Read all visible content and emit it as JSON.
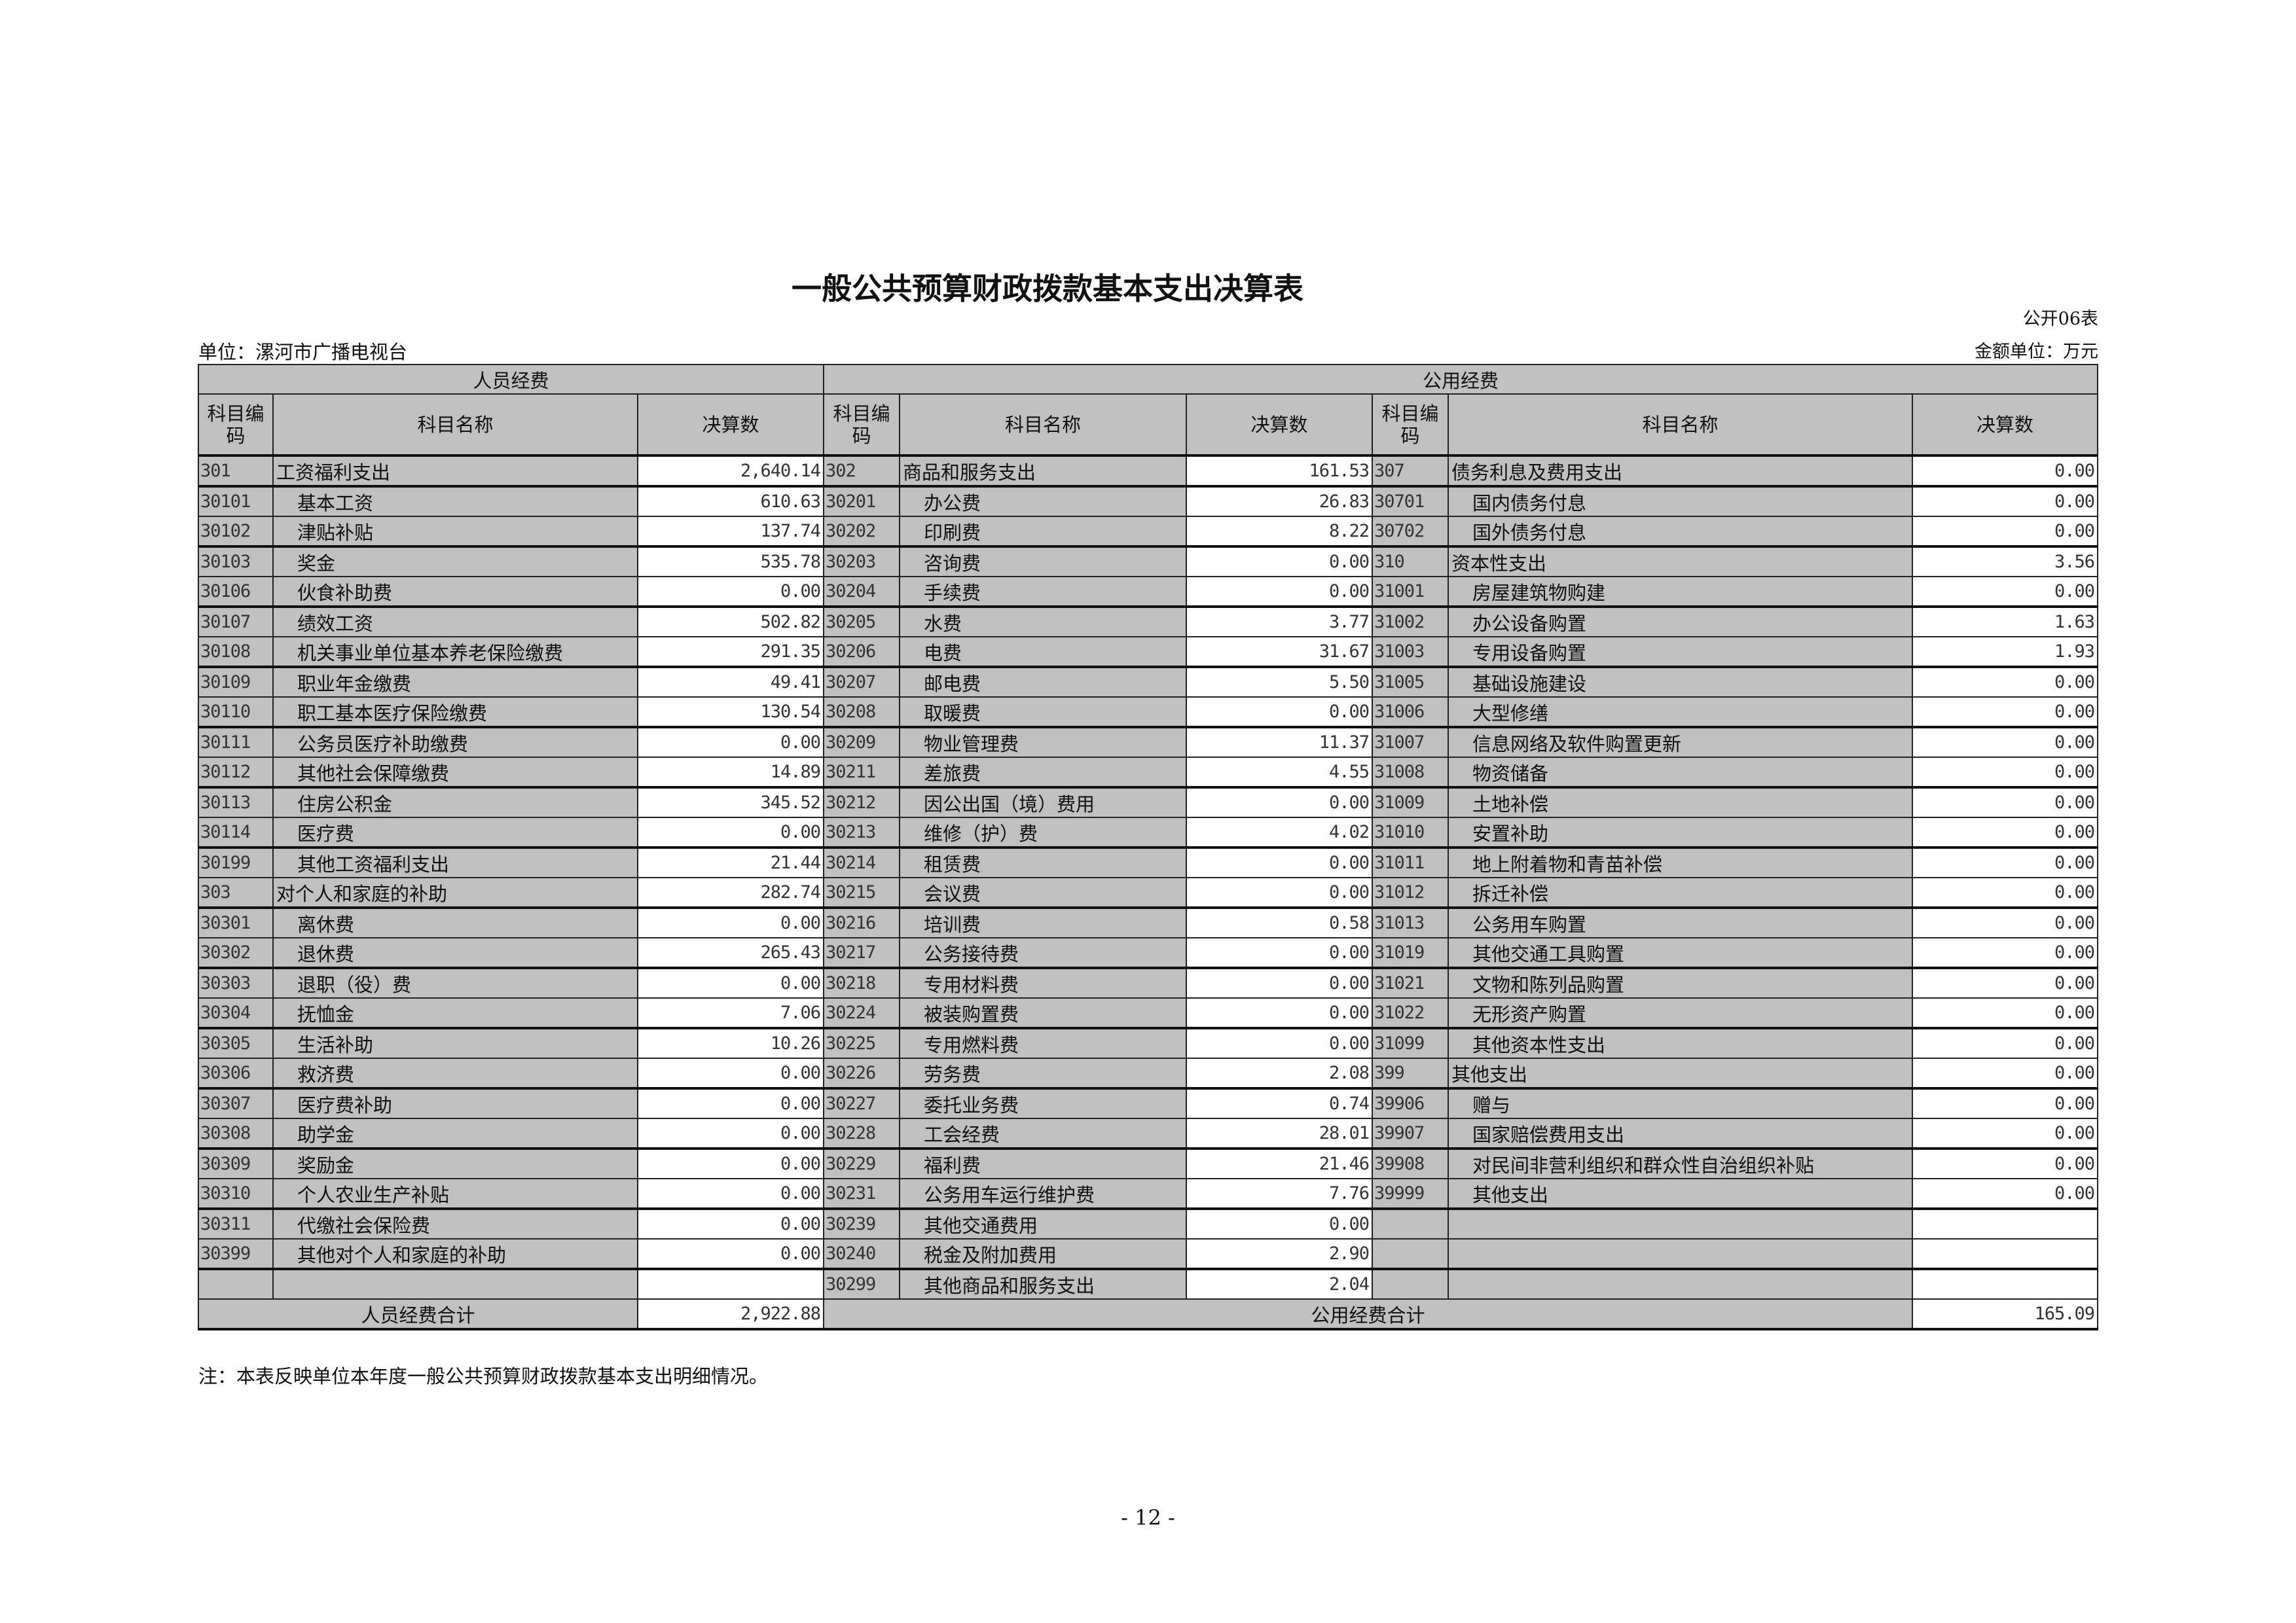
{
  "title": "一般公共预算财政拨款基本支出决算表",
  "table_no": "公开06表",
  "unit_label": "单位：漯河市广播电视台",
  "amount_unit": "金额单位：万元",
  "groups": {
    "personnel": "人员经费",
    "public": "公用经费"
  },
  "headers": {
    "code": "科目编码",
    "name": "科目名称",
    "amount": "决算数"
  },
  "personnel_rows": [
    [
      "301",
      "工资福利支出",
      "2,640.14"
    ],
    [
      "30101",
      "基本工资",
      "610.63"
    ],
    [
      "30102",
      "津贴补贴",
      "137.74"
    ],
    [
      "30103",
      "奖金",
      "535.78"
    ],
    [
      "30106",
      "伙食补助费",
      "0.00"
    ],
    [
      "30107",
      "绩效工资",
      "502.82"
    ],
    [
      "30108",
      "机关事业单位基本养老保险缴费",
      "291.35"
    ],
    [
      "30109",
      "职业年金缴费",
      "49.41"
    ],
    [
      "30110",
      "职工基本医疗保险缴费",
      "130.54"
    ],
    [
      "30111",
      "公务员医疗补助缴费",
      "0.00"
    ],
    [
      "30112",
      "其他社会保障缴费",
      "14.89"
    ],
    [
      "30113",
      "住房公积金",
      "345.52"
    ],
    [
      "30114",
      "医疗费",
      "0.00"
    ],
    [
      "30199",
      "其他工资福利支出",
      "21.44"
    ],
    [
      "303",
      "对个人和家庭的补助",
      "282.74"
    ],
    [
      "30301",
      "离休费",
      "0.00"
    ],
    [
      "30302",
      "退休费",
      "265.43"
    ],
    [
      "30303",
      "退职（役）费",
      "0.00"
    ],
    [
      "30304",
      "抚恤金",
      "7.06"
    ],
    [
      "30305",
      "生活补助",
      "10.26"
    ],
    [
      "30306",
      "救济费",
      "0.00"
    ],
    [
      "30307",
      "医疗费补助",
      "0.00"
    ],
    [
      "30308",
      "助学金",
      "0.00"
    ],
    [
      "30309",
      "奖励金",
      "0.00"
    ],
    [
      "30310",
      "个人农业生产补贴",
      "0.00"
    ],
    [
      "30311",
      "代缴社会保险费",
      "0.00"
    ],
    [
      "30399",
      "其他对个人和家庭的补助",
      "0.00"
    ],
    [
      "",
      "",
      ""
    ]
  ],
  "public_rows_a": [
    [
      "302",
      "商品和服务支出",
      "161.53"
    ],
    [
      "30201",
      "办公费",
      "26.83"
    ],
    [
      "30202",
      "印刷费",
      "8.22"
    ],
    [
      "30203",
      "咨询费",
      "0.00"
    ],
    [
      "30204",
      "手续费",
      "0.00"
    ],
    [
      "30205",
      "水费",
      "3.77"
    ],
    [
      "30206",
      "电费",
      "31.67"
    ],
    [
      "30207",
      "邮电费",
      "5.50"
    ],
    [
      "30208",
      "取暖费",
      "0.00"
    ],
    [
      "30209",
      "物业管理费",
      "11.37"
    ],
    [
      "30211",
      "差旅费",
      "4.55"
    ],
    [
      "30212",
      "因公出国（境）费用",
      "0.00"
    ],
    [
      "30213",
      "维修（护）费",
      "4.02"
    ],
    [
      "30214",
      "租赁费",
      "0.00"
    ],
    [
      "30215",
      "会议费",
      "0.00"
    ],
    [
      "30216",
      "培训费",
      "0.58"
    ],
    [
      "30217",
      "公务接待费",
      "0.00"
    ],
    [
      "30218",
      "专用材料费",
      "0.00"
    ],
    [
      "30224",
      "被装购置费",
      "0.00"
    ],
    [
      "30225",
      "专用燃料费",
      "0.00"
    ],
    [
      "30226",
      "劳务费",
      "2.08"
    ],
    [
      "30227",
      "委托业务费",
      "0.74"
    ],
    [
      "30228",
      "工会经费",
      "28.01"
    ],
    [
      "30229",
      "福利费",
      "21.46"
    ],
    [
      "30231",
      "公务用车运行维护费",
      "7.76"
    ],
    [
      "30239",
      "其他交通费用",
      "0.00"
    ],
    [
      "30240",
      "税金及附加费用",
      "2.90"
    ],
    [
      "30299",
      "其他商品和服务支出",
      "2.04"
    ]
  ],
  "public_rows_b": [
    [
      "307",
      "债务利息及费用支出",
      "0.00"
    ],
    [
      "30701",
      "国内债务付息",
      "0.00"
    ],
    [
      "30702",
      "国外债务付息",
      "0.00"
    ],
    [
      "310",
      "资本性支出",
      "3.56"
    ],
    [
      "31001",
      "房屋建筑物购建",
      "0.00"
    ],
    [
      "31002",
      "办公设备购置",
      "1.63"
    ],
    [
      "31003",
      "专用设备购置",
      "1.93"
    ],
    [
      "31005",
      "基础设施建设",
      "0.00"
    ],
    [
      "31006",
      "大型修缮",
      "0.00"
    ],
    [
      "31007",
      "信息网络及软件购置更新",
      "0.00"
    ],
    [
      "31008",
      "物资储备",
      "0.00"
    ],
    [
      "31009",
      "土地补偿",
      "0.00"
    ],
    [
      "31010",
      "安置补助",
      "0.00"
    ],
    [
      "31011",
      "地上附着物和青苗补偿",
      "0.00"
    ],
    [
      "31012",
      "拆迁补偿",
      "0.00"
    ],
    [
      "31013",
      "公务用车购置",
      "0.00"
    ],
    [
      "31019",
      "其他交通工具购置",
      "0.00"
    ],
    [
      "31021",
      "文物和陈列品购置",
      "0.00"
    ],
    [
      "31022",
      "无形资产购置",
      "0.00"
    ],
    [
      "31099",
      "其他资本性支出",
      "0.00"
    ],
    [
      "399",
      "其他支出",
      "0.00"
    ],
    [
      "39906",
      "赠与",
      "0.00"
    ],
    [
      "39907",
      "国家赔偿费用支出",
      "0.00"
    ],
    [
      "39908",
      "对民间非营利组织和群众性自治组织补贴",
      "0.00"
    ],
    [
      "39999",
      "其他支出",
      "0.00"
    ],
    [
      "",
      "",
      ""
    ],
    [
      "",
      "",
      ""
    ],
    [
      "",
      "",
      ""
    ]
  ],
  "totals": {
    "personnel_label": "人员经费合计",
    "personnel_value": "2,922.88",
    "public_label": "公用经费合计",
    "public_value": "165.09"
  },
  "note": "注：本表反映单位本年度一般公共预算财政拨款基本支出明细情况。",
  "page_number": "- 12 -"
}
